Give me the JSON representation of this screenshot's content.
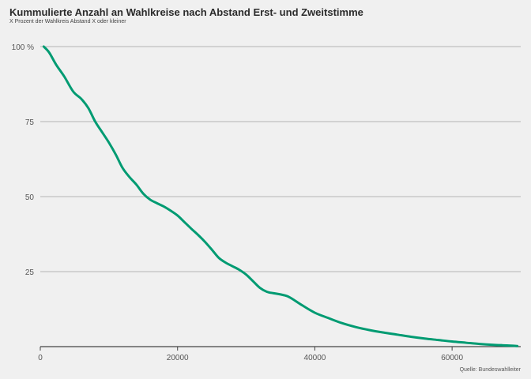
{
  "title": "Kummulierte Anzahl an Wahlkreise nach Abstand Erst- und Zweitstimme",
  "subtitle": "X Prozent der Wahlkreis Abstand X oder kleiner",
  "source": "Quelle: Bundeswahlleiter",
  "colors": {
    "line": "#009b72",
    "grid": "#b5b5b5",
    "axis": "#444444",
    "background": "#f0f0f0"
  },
  "chart_data": {
    "type": "line",
    "title": "Kummulierte Anzahl an Wahlkreise nach Abstand Erst- und Zweitstimme",
    "subtitle": "X Prozent der Wahlkreis Abstand X oder kleiner",
    "xlim": [
      0,
      70000
    ],
    "ylim": [
      0,
      100
    ],
    "x_ticks": [
      0,
      20000,
      40000,
      60000
    ],
    "x_tick_labels": [
      "0",
      "20000",
      "40000",
      "60000"
    ],
    "y_ticks": [
      25,
      50,
      75,
      100
    ],
    "y_tick_labels": [
      "25",
      "50",
      "75",
      "100 %"
    ],
    "grid": "horizontal",
    "series": [
      {
        "x": [
          500,
          1300,
          2300,
          3500,
          4800,
          6000,
          7000,
          8000,
          9000,
          10000,
          11000,
          12000,
          13000,
          14000,
          15000,
          16000,
          17000,
          18000,
          19000,
          20000,
          21000,
          22000,
          23000,
          24000,
          25000,
          26000,
          27000,
          28000,
          29000,
          30000,
          31000,
          32000,
          33000,
          34000,
          35000,
          36000,
          37000,
          38000,
          40000,
          42000,
          44000,
          46000,
          48000,
          50000,
          52000,
          54000,
          56000,
          58000,
          60000,
          62000,
          64000,
          66000,
          68000,
          69500
        ],
        "y": [
          100,
          98,
          94,
          90,
          85,
          82.5,
          79.5,
          75,
          71.5,
          68,
          64,
          59.5,
          56.5,
          54,
          51,
          49,
          47.8,
          46.7,
          45.3,
          43.7,
          41.5,
          39.3,
          37.2,
          34.9,
          32.3,
          29.6,
          28,
          26.8,
          25.6,
          24,
          21.8,
          19.6,
          18.3,
          17.8,
          17.4,
          16.8,
          15.5,
          14,
          11.3,
          9.5,
          7.8,
          6.5,
          5.5,
          4.7,
          4,
          3.3,
          2.7,
          2.2,
          1.7,
          1.3,
          0.9,
          0.6,
          0.4,
          0.2
        ]
      }
    ]
  }
}
